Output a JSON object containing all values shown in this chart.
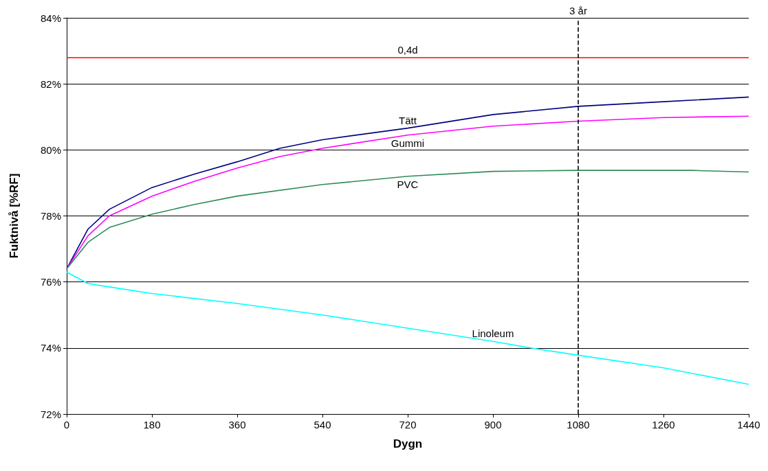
{
  "chart_data": {
    "type": "line",
    "xlabel": "Dygn",
    "ylabel": "Fuktnivå [%RF]",
    "xlim": [
      0,
      1440
    ],
    "xticks": [
      0,
      180,
      360,
      540,
      720,
      900,
      1080,
      1260,
      1440
    ],
    "ylim": [
      72,
      84
    ],
    "yticks": [
      {
        "value": 72,
        "label": "72%"
      },
      {
        "value": 74,
        "label": "74%"
      },
      {
        "value": 76,
        "label": "76%"
      },
      {
        "value": 78,
        "label": "78%"
      },
      {
        "value": 80,
        "label": "80%"
      },
      {
        "value": 82,
        "label": "82%"
      },
      {
        "value": 84,
        "label": "84%"
      }
    ],
    "grid": "y",
    "marker": "none",
    "line_style": "solid",
    "series": [
      {
        "name": "Tätt",
        "color": "#000080",
        "x": [
          0,
          45,
          90,
          180,
          270,
          360,
          450,
          540,
          720,
          900,
          1080,
          1260,
          1440
        ],
        "values": [
          76.4,
          77.6,
          78.2,
          78.86,
          79.27,
          79.64,
          80.05,
          80.31,
          80.66,
          81.07,
          81.32,
          81.46,
          81.6
        ]
      },
      {
        "name": "Gummi",
        "color": "#ff00ff",
        "x": [
          0,
          45,
          90,
          180,
          270,
          360,
          450,
          540,
          720,
          900,
          1080,
          1260,
          1440
        ],
        "values": [
          76.4,
          77.4,
          78.0,
          78.6,
          79.05,
          79.45,
          79.8,
          80.05,
          80.45,
          80.72,
          80.87,
          80.98,
          81.02
        ]
      },
      {
        "name": "PVC",
        "color": "#2e8b57",
        "x": [
          0,
          45,
          90,
          180,
          270,
          360,
          540,
          720,
          900,
          1080,
          1260,
          1320,
          1440
        ],
        "values": [
          76.4,
          77.2,
          77.65,
          78.05,
          78.35,
          78.6,
          78.95,
          79.2,
          79.35,
          79.38,
          79.38,
          79.38,
          79.33
        ]
      },
      {
        "name": "Linoleum",
        "color": "#00ffff",
        "x": [
          0,
          45,
          90,
          180,
          360,
          540,
          720,
          900,
          980,
          1080,
          1260,
          1440
        ],
        "values": [
          76.3,
          75.95,
          75.85,
          75.65,
          75.35,
          75.0,
          74.6,
          74.2,
          74.0,
          73.78,
          73.4,
          72.9
        ]
      }
    ],
    "ref_lines": [
      {
        "axis": "y",
        "value": 82.8,
        "label": "0,4d",
        "color": "#ff0000",
        "line_style": "solid"
      },
      {
        "axis": "x",
        "value": 1080,
        "label": "3 år",
        "color": "#000000",
        "line_style": "dashed"
      }
    ]
  }
}
